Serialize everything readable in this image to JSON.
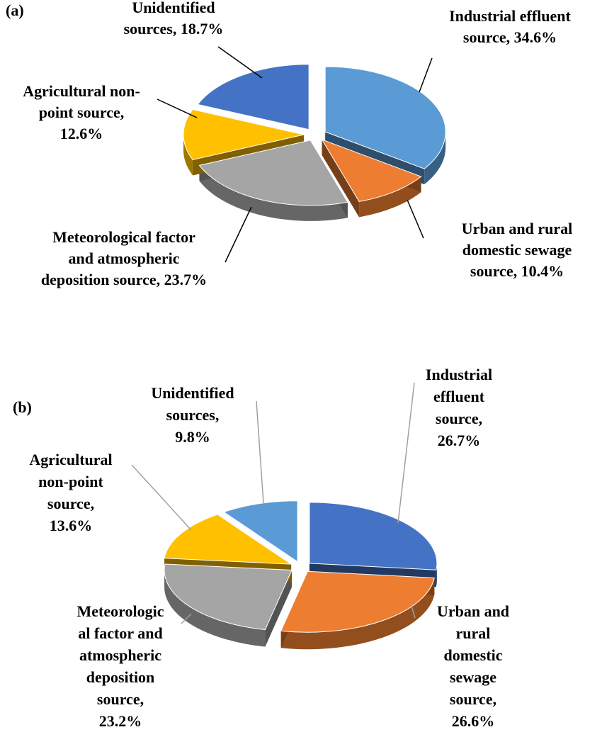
{
  "chart_data": [
    {
      "type": "pie",
      "panel": "(a)",
      "title": "",
      "slices": [
        {
          "label": [
            "Industrial  effluent",
            "source, 34.6%"
          ],
          "value": 34.6,
          "color": "#5b9bd5"
        },
        {
          "label": [
            "Urban and rural",
            "domestic sewage",
            "source, 10.4%"
          ],
          "value": 10.4,
          "color": "#ed7d31"
        },
        {
          "label": [
            "Meteorological factor",
            "and atmospheric",
            "deposition source, 23.7%"
          ],
          "value": 23.7,
          "color": "#a5a5a5"
        },
        {
          "label": [
            "Agricultural  non-",
            "point source,",
            "12.6%"
          ],
          "value": 12.6,
          "color": "#ffc000"
        },
        {
          "label": [
            "Unidentified",
            "sources, 18.7%"
          ],
          "value": 18.7,
          "color": "#4472c4"
        }
      ]
    },
    {
      "type": "pie",
      "panel": "(b)",
      "title": "",
      "slices": [
        {
          "label": [
            "Industrial",
            "effluent",
            "source,",
            "26.7%"
          ],
          "value": 26.7,
          "color": "#4472c4"
        },
        {
          "label": [
            "Urban and",
            "rural",
            "domestic",
            "sewage",
            "source,",
            "26.6%"
          ],
          "value": 26.6,
          "color": "#ed7d31"
        },
        {
          "label": [
            "Meteorologic",
            "al factor and",
            "atmospheric",
            "deposition",
            "source,",
            "23.2%"
          ],
          "value": 23.2,
          "color": "#a5a5a5"
        },
        {
          "label": [
            "Agricultural",
            "non-point",
            "source,",
            "13.6%"
          ],
          "value": 13.6,
          "color": "#ffc000"
        },
        {
          "label": [
            "Unidentified",
            "sources,",
            "9.8%"
          ],
          "value": 9.8,
          "color": "#5b9bd5"
        }
      ]
    }
  ]
}
